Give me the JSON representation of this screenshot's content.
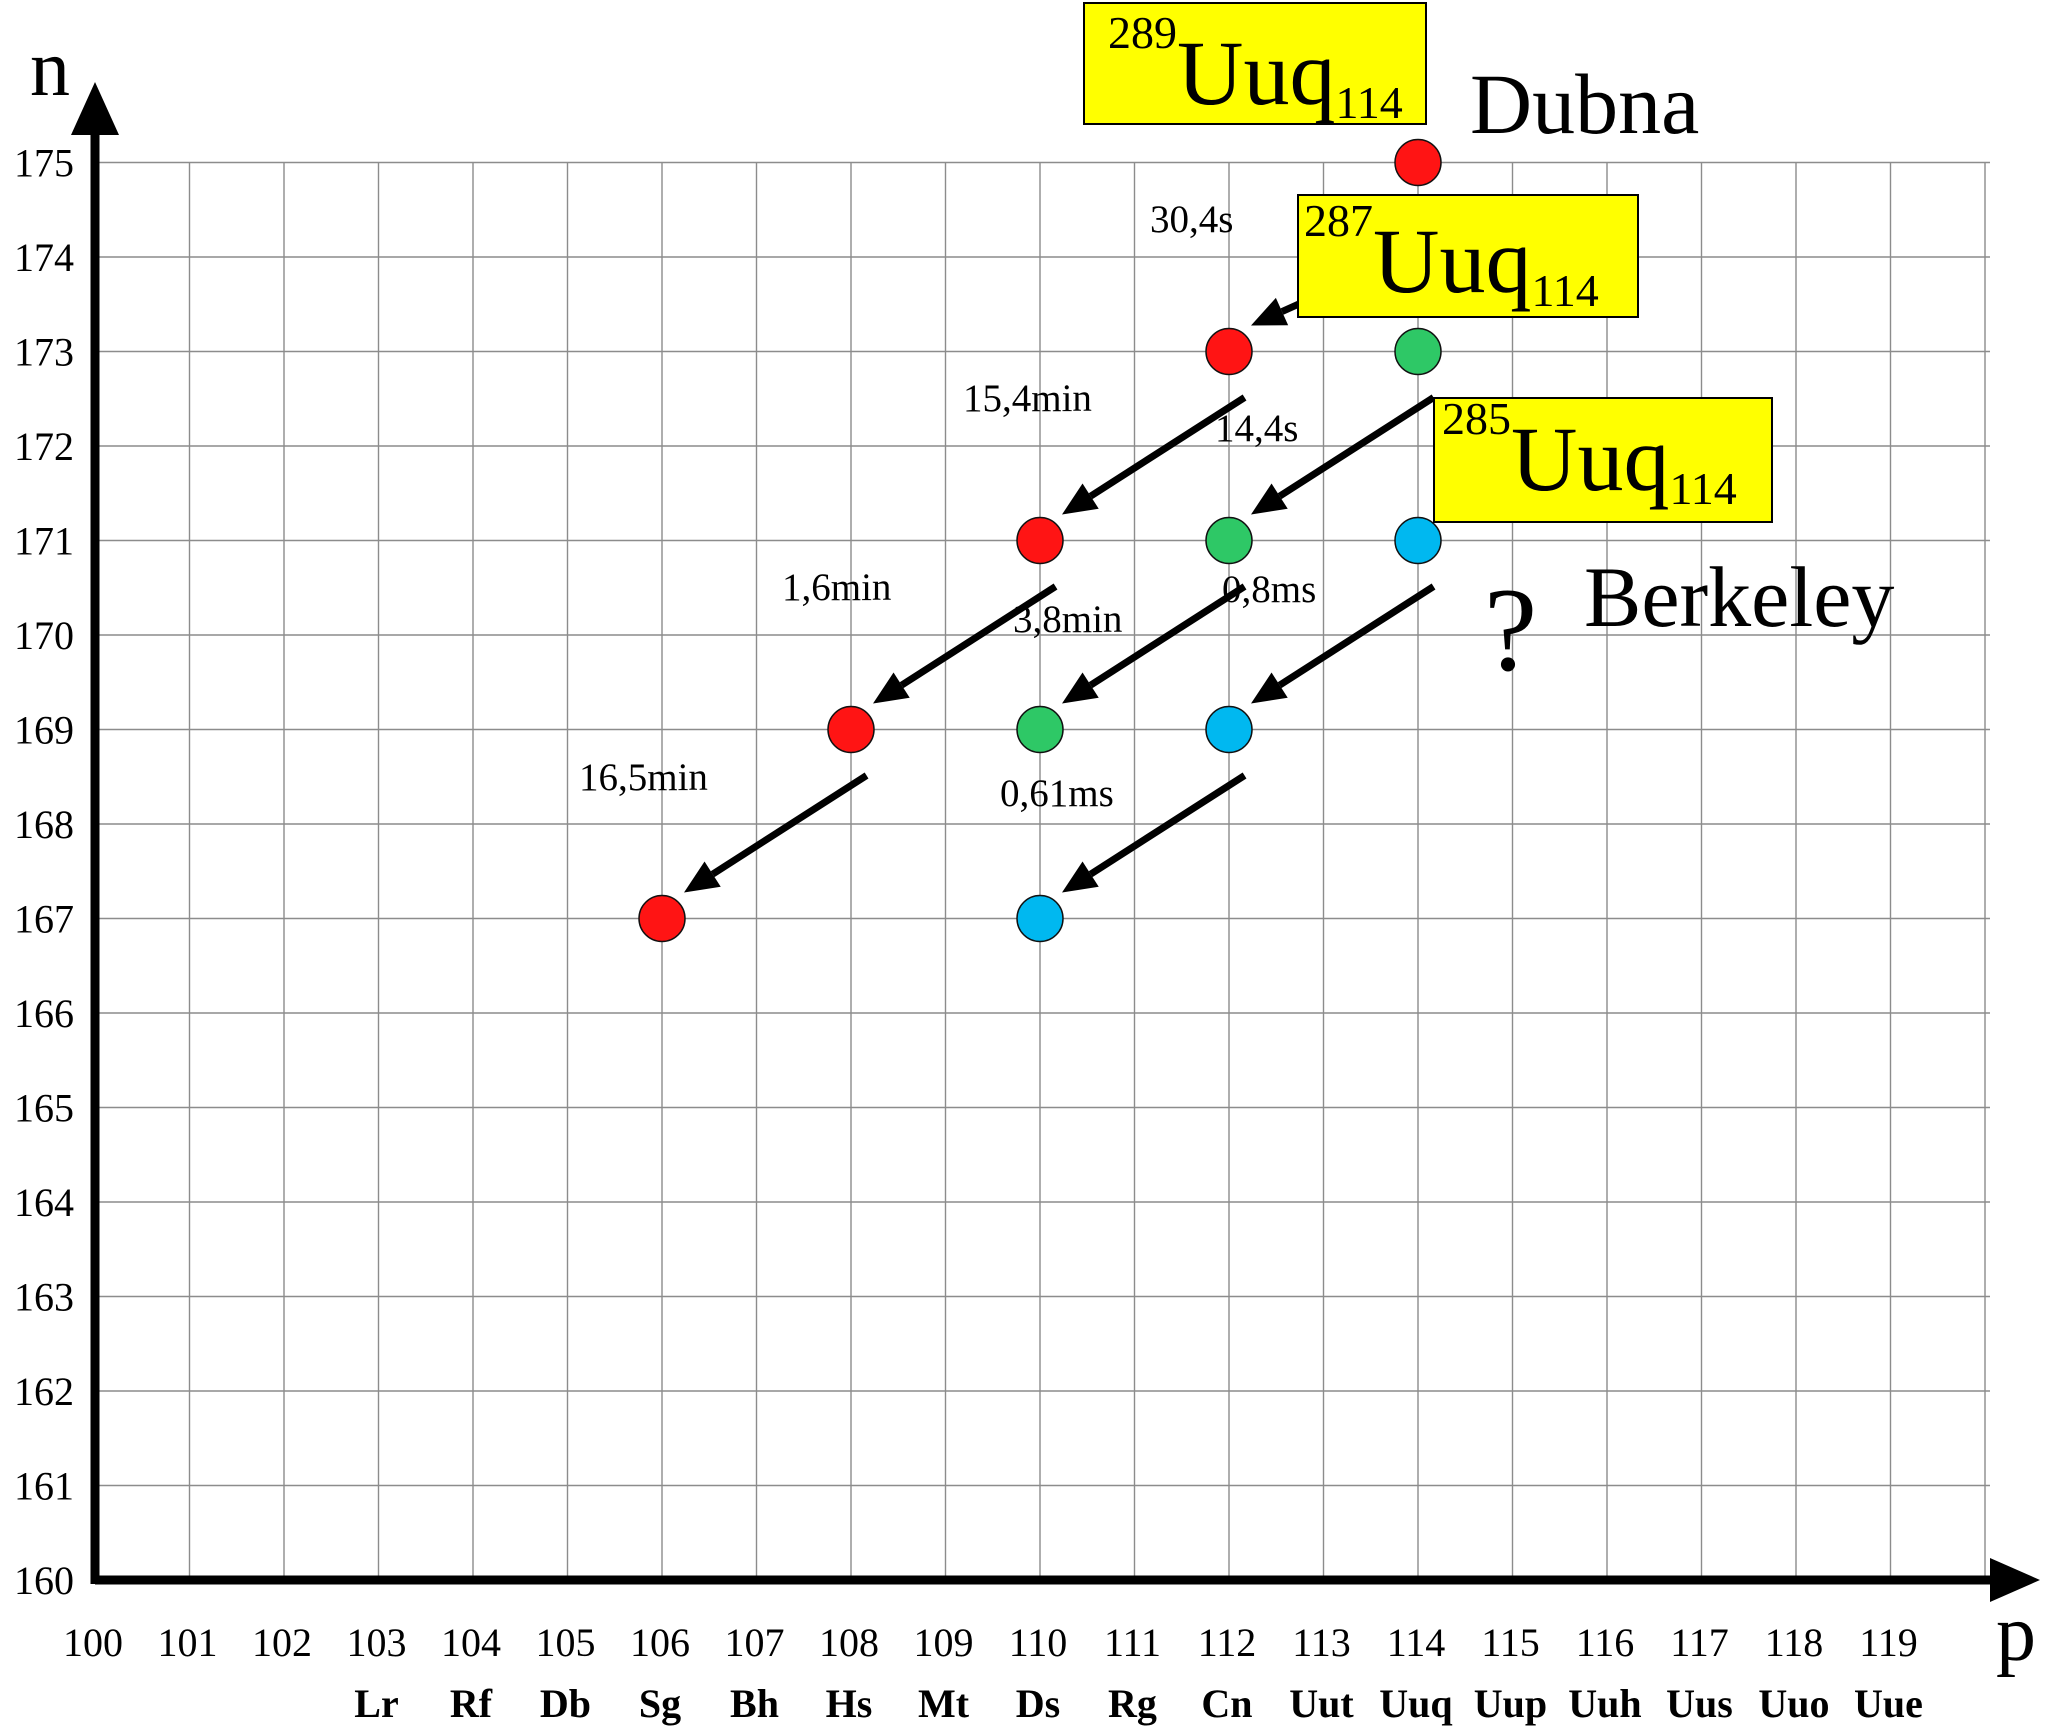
{
  "chart_data": {
    "type": "scatter",
    "xlabel": "p",
    "ylabel": "n",
    "xlim": [
      100,
      120
    ],
    "ylim": [
      160,
      175
    ],
    "x_ticks": [
      "100",
      "101",
      "102",
      "103",
      "104",
      "105",
      "106",
      "107",
      "108",
      "109",
      "110",
      "111",
      "112",
      "113",
      "114",
      "115",
      "116",
      "117",
      "118",
      "119"
    ],
    "x_symbols": [
      {
        "p": 103,
        "symbol": "Lr"
      },
      {
        "p": 104,
        "symbol": "Rf"
      },
      {
        "p": 105,
        "symbol": "Db"
      },
      {
        "p": 106,
        "symbol": "Sg"
      },
      {
        "p": 107,
        "symbol": "Bh"
      },
      {
        "p": 108,
        "symbol": "Hs"
      },
      {
        "p": 109,
        "symbol": "Mt"
      },
      {
        "p": 110,
        "symbol": "Ds"
      },
      {
        "p": 111,
        "symbol": "Rg"
      },
      {
        "p": 112,
        "symbol": "Cn"
      },
      {
        "p": 113,
        "symbol": "Uut"
      },
      {
        "p": 114,
        "symbol": "Uuq"
      },
      {
        "p": 115,
        "symbol": "Uup"
      },
      {
        "p": 116,
        "symbol": "Uuh"
      },
      {
        "p": 117,
        "symbol": "Uus"
      },
      {
        "p": 118,
        "symbol": "Uuo"
      },
      {
        "p": 119,
        "symbol": "Uue"
      }
    ],
    "y_ticks": [
      "160",
      "161",
      "162",
      "163",
      "164",
      "165",
      "166",
      "167",
      "168",
      "169",
      "170",
      "171",
      "172",
      "173",
      "174",
      "175"
    ],
    "grid": true,
    "series": [
      {
        "color": "#ff1414",
        "points": [
          [
            114,
            175
          ],
          [
            112,
            173
          ],
          [
            110,
            171
          ],
          [
            108,
            169
          ],
          [
            106,
            167
          ]
        ],
        "half_lives": [
          "30,4s",
          "15,4min",
          "1,6min",
          "16,5min"
        ]
      },
      {
        "color": "#2ec866",
        "points": [
          [
            114,
            173
          ],
          [
            112,
            171
          ],
          [
            110,
            169
          ]
        ],
        "half_lives": [
          "14,4s",
          "3,8min"
        ]
      },
      {
        "color": "#00b8f0",
        "points": [
          [
            114,
            171
          ],
          [
            112,
            169
          ],
          [
            110,
            167
          ]
        ],
        "half_lives": [
          "0,8ms",
          "0,61ms"
        ]
      }
    ],
    "annotations": {
      "isotope_labels": [
        {
          "mass": "289",
          "symbol": "Uuq",
          "z": "114",
          "bg": "#ffff00"
        },
        {
          "mass": "287",
          "symbol": "Uuq",
          "z": "114",
          "bg": "#ffff00"
        },
        {
          "mass": "285",
          "symbol": "Uuq",
          "z": "114",
          "bg": "#ffff00"
        }
      ],
      "places": [
        "Dubna",
        "Berkeley"
      ],
      "question_mark": "?"
    }
  }
}
